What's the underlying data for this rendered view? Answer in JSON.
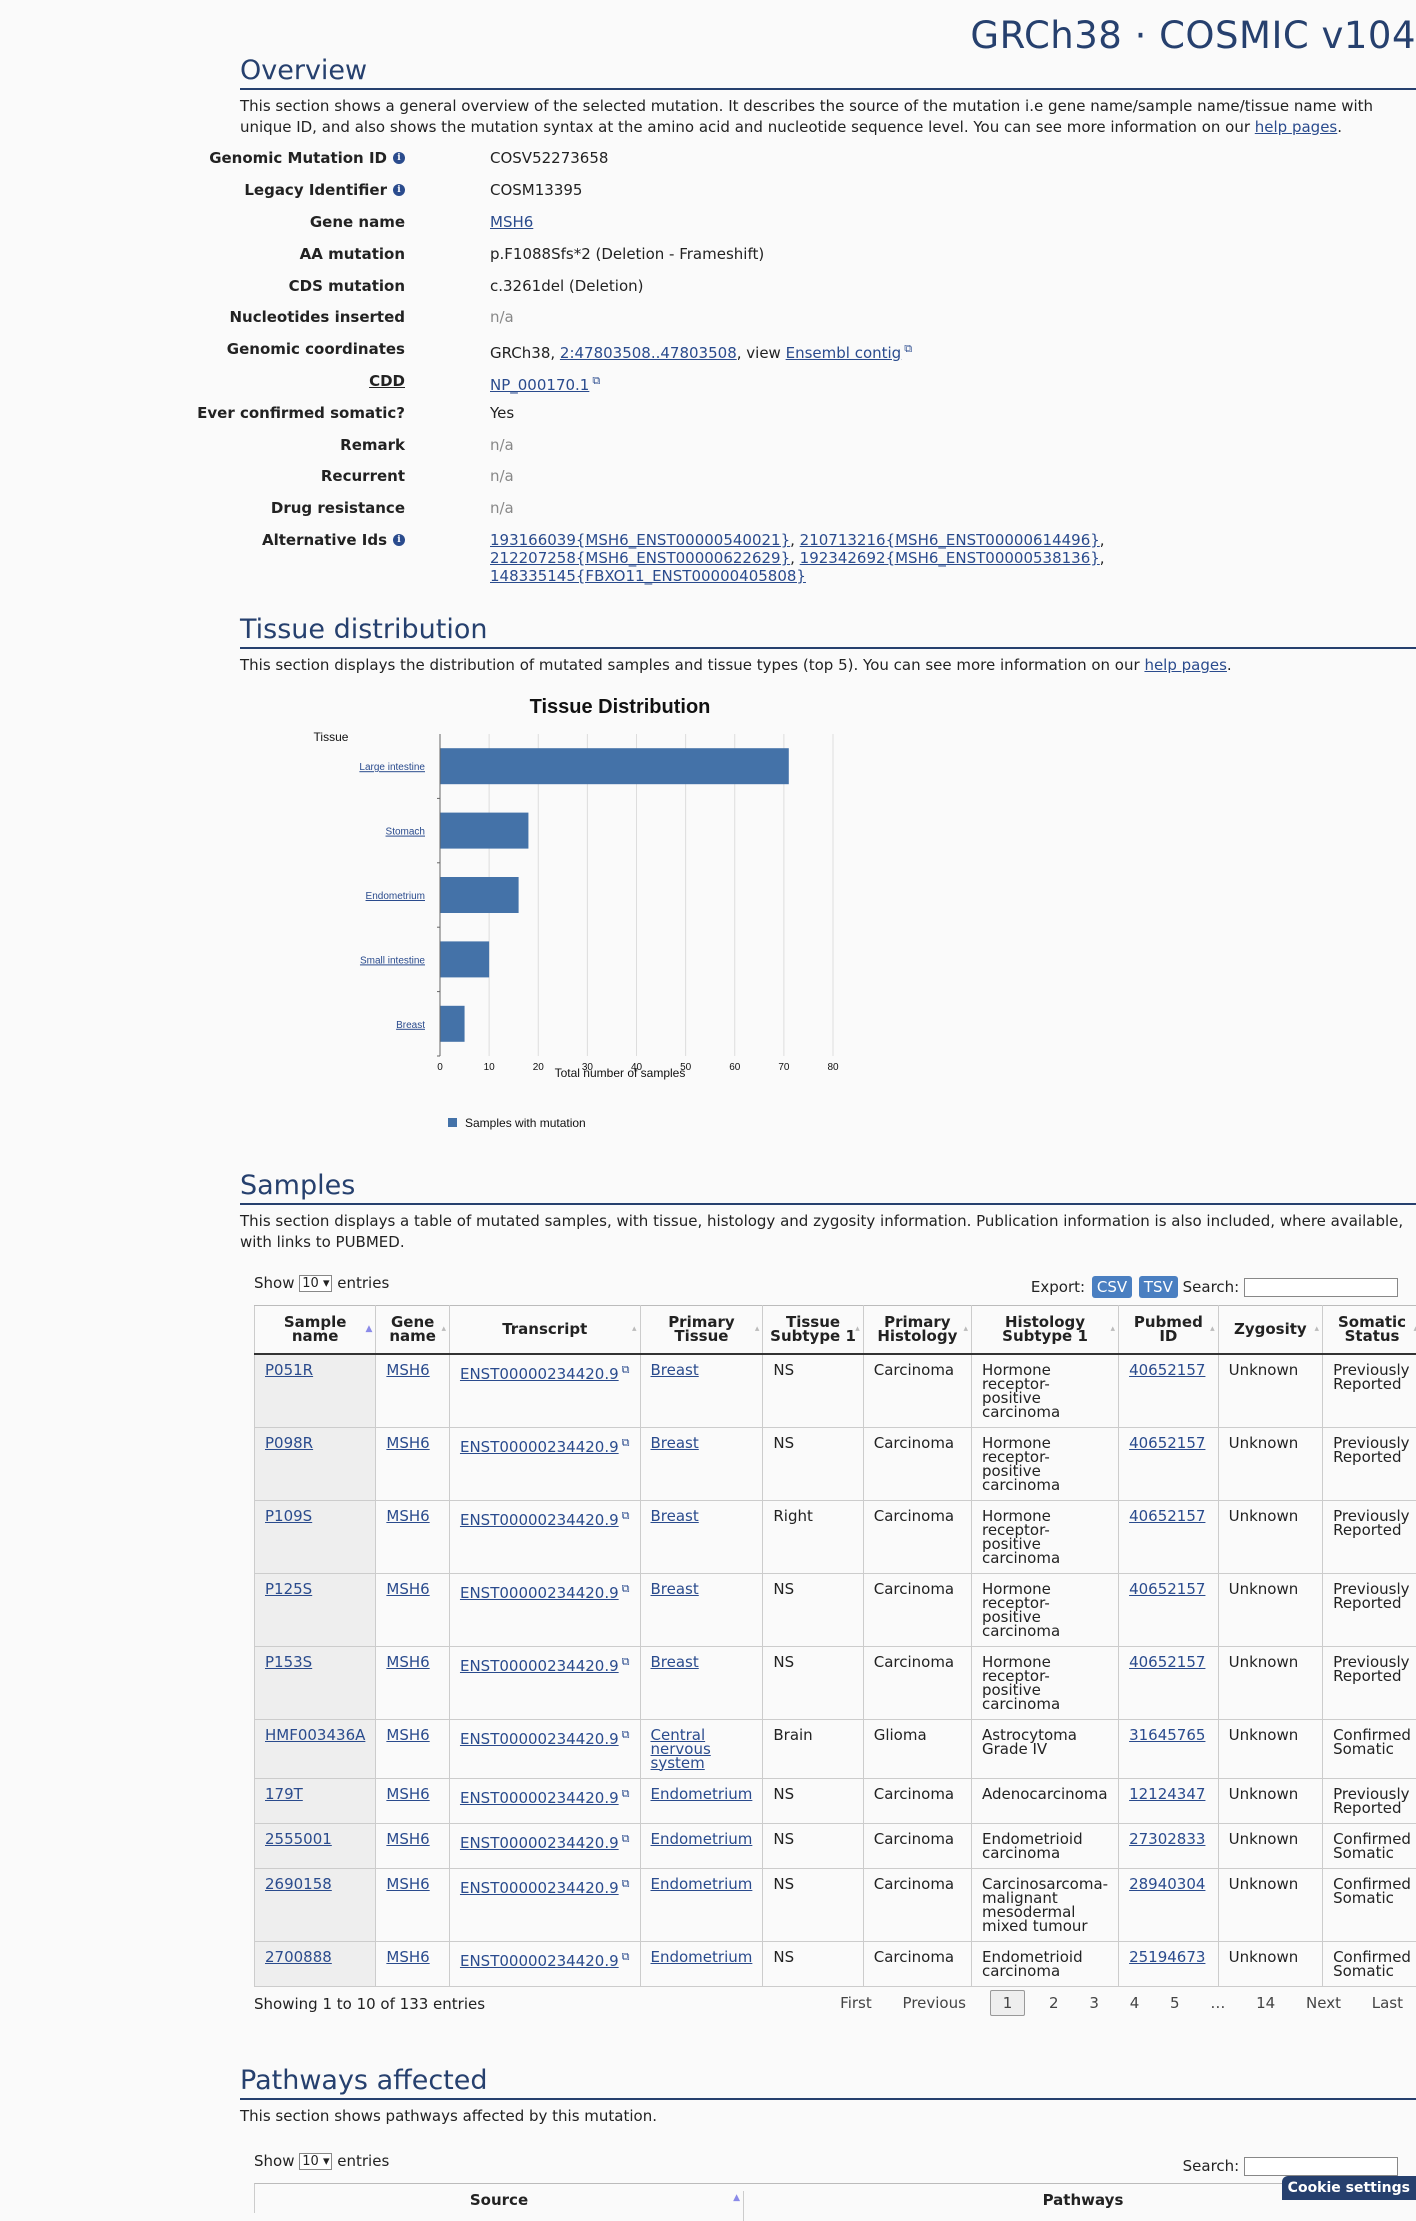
{
  "header": {
    "title": "GRCh38 · COSMIC v104"
  },
  "overview": {
    "heading": "Overview",
    "desc_pre": "This section shows a general overview of the selected mutation. It describes the source of the mutation i.e gene name/sample name/tissue name with unique ID, and also shows the mutation syntax at the amino acid and nucleotide sequence level. You can see more information on our ",
    "help_link": "help pages",
    "desc_post": ".",
    "fields": {
      "genomic_mutation_id": {
        "label": "Genomic Mutation ID",
        "value": "COSV52273658"
      },
      "legacy_identifier": {
        "label": "Legacy Identifier",
        "value": "COSM13395"
      },
      "gene_name": {
        "label": "Gene name",
        "value": "MSH6"
      },
      "aa_mutation": {
        "label": "AA mutation",
        "value": "p.F1088Sfs*2 (Deletion - Frameshift)"
      },
      "cds_mutation": {
        "label": "CDS mutation",
        "value": "c.3261del (Deletion)"
      },
      "nucleotides_inserted": {
        "label": "Nucleotides inserted",
        "value": "n/a"
      },
      "genomic_coordinates": {
        "label": "Genomic coordinates",
        "prefix": "GRCh38, ",
        "link": "2:47803508..47803508",
        "mid": ", view ",
        "link2": "Ensembl contig"
      },
      "cdd": {
        "label": "CDD",
        "value": "NP_000170.1"
      },
      "ever_confirmed_somatic": {
        "label": "Ever confirmed somatic?",
        "value": "Yes"
      },
      "remark": {
        "label": "Remark",
        "value": "n/a"
      },
      "recurrent": {
        "label": "Recurrent",
        "value": "n/a"
      },
      "drug_resistance": {
        "label": "Drug resistance",
        "value": "n/a"
      },
      "alternative_ids": {
        "label": "Alternative Ids",
        "ids": [
          "193166039{MSH6_ENST00000540021}",
          "210713216{MSH6_ENST00000614496}",
          "212207258{MSH6_ENST00000622629}",
          "192342692{MSH6_ENST00000538136}",
          "148335145{FBXO11_ENST00000405808}"
        ],
        "sep": ", "
      }
    }
  },
  "tissue": {
    "heading": "Tissue distribution",
    "desc_pre": "This section displays the distribution of mutated samples and tissue types (top 5). You can see more information on our ",
    "help_link": "help pages",
    "desc_post": "."
  },
  "chart_data": {
    "type": "bar",
    "orientation": "horizontal",
    "title": "Tissue Distribution",
    "ylabel": "Tissue",
    "xlabel": "Total number of samples",
    "categories": [
      "Large intestine",
      "Stomach",
      "Endometrium",
      "Small intestine",
      "Breast"
    ],
    "series": [
      {
        "name": "Samples with mutation",
        "values": [
          71,
          18,
          16,
          10,
          5
        ]
      }
    ],
    "xlim": [
      0,
      80
    ],
    "xticks": [
      0,
      10,
      20,
      30,
      40,
      50,
      60,
      70,
      80
    ],
    "grid": true,
    "legend": "bottom-left",
    "bar_color": "#4472a8"
  },
  "samples": {
    "heading": "Samples",
    "desc": "This section displays a table of mutated samples, with tissue, histology and zygosity information. Publication information is also included, where available, with links to PUBMED.",
    "show_label": "Show",
    "show_value": "10",
    "entries_label": "entries",
    "export_label": "Export:",
    "csv": "CSV",
    "tsv": "TSV",
    "search_label": "Search:",
    "columns": [
      [
        "Sample",
        "name"
      ],
      [
        "Gene",
        "name"
      ],
      [
        "Transcript",
        ""
      ],
      [
        "Primary",
        "Tissue"
      ],
      [
        "Tissue",
        "Subtype 1"
      ],
      [
        "Primary",
        "Histology"
      ],
      [
        "Histology",
        "Subtype 1"
      ],
      [
        "Pubmed",
        "ID"
      ],
      [
        "Zygosity",
        ""
      ],
      [
        "Somatic",
        "Status"
      ]
    ],
    "rows": [
      {
        "sample": "P051R",
        "gene": "MSH6",
        "transcript": "ENST00000234420.9",
        "tissue": [
          "Breast"
        ],
        "subtype": "NS",
        "histology": "Carcinoma",
        "hist_sub": [
          "Hormone",
          "receptor-",
          "positive",
          "carcinoma"
        ],
        "pubmed": "40652157",
        "zygosity": "Unknown",
        "status": [
          "Previously",
          "Reported"
        ]
      },
      {
        "sample": "P098R",
        "gene": "MSH6",
        "transcript": "ENST00000234420.9",
        "tissue": [
          "Breast"
        ],
        "subtype": "NS",
        "histology": "Carcinoma",
        "hist_sub": [
          "Hormone",
          "receptor-",
          "positive",
          "carcinoma"
        ],
        "pubmed": "40652157",
        "zygosity": "Unknown",
        "status": [
          "Previously",
          "Reported"
        ]
      },
      {
        "sample": "P109S",
        "gene": "MSH6",
        "transcript": "ENST00000234420.9",
        "tissue": [
          "Breast"
        ],
        "subtype": "Right",
        "histology": "Carcinoma",
        "hist_sub": [
          "Hormone",
          "receptor-",
          "positive",
          "carcinoma"
        ],
        "pubmed": "40652157",
        "zygosity": "Unknown",
        "status": [
          "Previously",
          "Reported"
        ]
      },
      {
        "sample": "P125S",
        "gene": "MSH6",
        "transcript": "ENST00000234420.9",
        "tissue": [
          "Breast"
        ],
        "subtype": "NS",
        "histology": "Carcinoma",
        "hist_sub": [
          "Hormone",
          "receptor-",
          "positive",
          "carcinoma"
        ],
        "pubmed": "40652157",
        "zygosity": "Unknown",
        "status": [
          "Previously",
          "Reported"
        ]
      },
      {
        "sample": "P153S",
        "gene": "MSH6",
        "transcript": "ENST00000234420.9",
        "tissue": [
          "Breast"
        ],
        "subtype": "NS",
        "histology": "Carcinoma",
        "hist_sub": [
          "Hormone",
          "receptor-",
          "positive",
          "carcinoma"
        ],
        "pubmed": "40652157",
        "zygosity": "Unknown",
        "status": [
          "Previously",
          "Reported"
        ]
      },
      {
        "sample": "HMF003436A",
        "gene": "MSH6",
        "transcript": "ENST00000234420.9",
        "tissue": [
          "Central",
          "nervous",
          "system"
        ],
        "subtype": "Brain",
        "histology": "Glioma",
        "hist_sub": [
          "Astrocytoma",
          "Grade IV"
        ],
        "pubmed": "31645765",
        "zygosity": "Unknown",
        "status": [
          "Confirmed",
          "Somatic"
        ]
      },
      {
        "sample": "179T",
        "gene": "MSH6",
        "transcript": "ENST00000234420.9",
        "tissue": [
          "Endometrium"
        ],
        "subtype": "NS",
        "histology": "Carcinoma",
        "hist_sub": [
          "Adenocarcinoma"
        ],
        "pubmed": "12124347",
        "zygosity": "Unknown",
        "status": [
          "Previously",
          "Reported"
        ]
      },
      {
        "sample": "2555001",
        "gene": "MSH6",
        "transcript": "ENST00000234420.9",
        "tissue": [
          "Endometrium"
        ],
        "subtype": "NS",
        "histology": "Carcinoma",
        "hist_sub": [
          "Endometrioid",
          "carcinoma"
        ],
        "pubmed": "27302833",
        "zygosity": "Unknown",
        "status": [
          "Confirmed",
          "Somatic"
        ]
      },
      {
        "sample": "2690158",
        "gene": "MSH6",
        "transcript": "ENST00000234420.9",
        "tissue": [
          "Endometrium"
        ],
        "subtype": "NS",
        "histology": "Carcinoma",
        "hist_sub": [
          "Carcinosarcoma-",
          "malignant",
          "mesodermal",
          "mixed tumour"
        ],
        "pubmed": "28940304",
        "zygosity": "Unknown",
        "status": [
          "Confirmed",
          "Somatic"
        ]
      },
      {
        "sample": "2700888",
        "gene": "MSH6",
        "transcript": "ENST00000234420.9",
        "tissue": [
          "Endometrium"
        ],
        "subtype": "NS",
        "histology": "Carcinoma",
        "hist_sub": [
          "Endometrioid",
          "carcinoma"
        ],
        "pubmed": "25194673",
        "zygosity": "Unknown",
        "status": [
          "Confirmed",
          "Somatic"
        ]
      }
    ],
    "info": "Showing 1 to 10 of 133 entries",
    "pager": {
      "first": "First",
      "previous": "Previous",
      "pages": [
        "1",
        "2",
        "3",
        "4",
        "5"
      ],
      "ellipsis": "…",
      "last_page": "14",
      "next": "Next",
      "last": "Last"
    }
  },
  "pathways": {
    "heading": "Pathways affected",
    "desc": "This section shows pathways affected by this mutation.",
    "show_label": "Show",
    "show_value": "10",
    "entries_label": "entries",
    "search_label": "Search:",
    "columns": [
      "Source",
      "Pathways"
    ]
  },
  "cookie": {
    "label": "Cookie settings"
  }
}
